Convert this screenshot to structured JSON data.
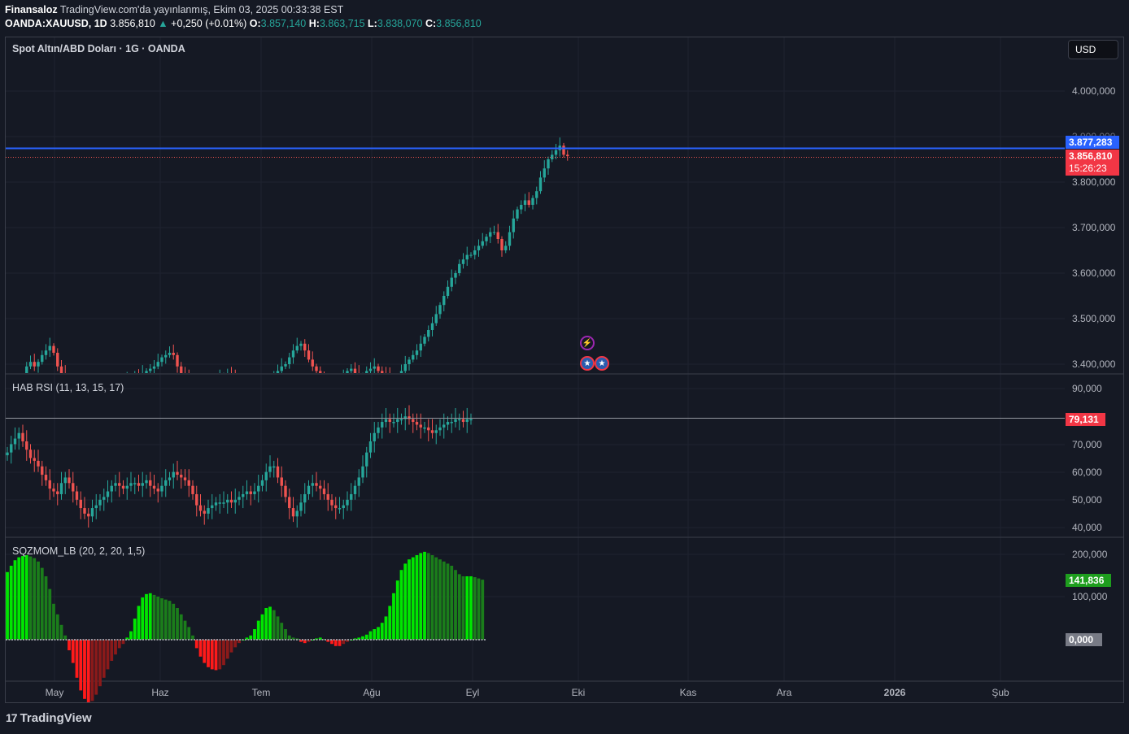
{
  "header": {
    "line1_author": "Finansaloz",
    "line1_rest": "TradingView.com'da yayınlanmış, Ekim 03, 2025 00:33:38 EST",
    "symbol": "OANDA:XAUUSD, 1D",
    "last": "3.856,810",
    "arrow": "▲",
    "change": "+0,250 (+0.01%)",
    "o_label": "O:",
    "o_val": "3.857,140",
    "h_label": "H:",
    "h_val": "3.863,715",
    "l_label": "L:",
    "l_val": "3.838,070",
    "c_label": "C:",
    "c_val": "3.856,810"
  },
  "main": {
    "title": "Spot Altın/ABD Doları · 1G · OANDA",
    "currency": "USD",
    "axis_labels": [
      "4.000,000",
      "3.900,000",
      "3.800,000",
      "3.700,000",
      "3.600,000",
      "3.500,000",
      "3.400,000"
    ],
    "alert_tag": "3.877,283",
    "price_tag": "3.856,810",
    "countdown": "15:26:23"
  },
  "rsi": {
    "title": "HAB RSI (11, 13, 15, 17)",
    "axis_labels": [
      "90,000",
      "70,000",
      "60,000",
      "50,000",
      "40,000"
    ],
    "tag": "79,131"
  },
  "sqz": {
    "title": "SQZMOM_LB (20, 2, 20, 1,5)",
    "axis_labels": [
      "200,000",
      "100,000"
    ],
    "tag": "141,836",
    "zero_tag": "0,000"
  },
  "time_axis": [
    "May",
    "Haz",
    "Tem",
    "Ağu",
    "Eyl",
    "Eki",
    "Kas",
    "Ara",
    "2026",
    "Şub"
  ],
  "events": {
    "bolt_icon": "⚡",
    "flag_icon": "us-flag-icon"
  },
  "footer": {
    "logo_mark": "17",
    "logo_text": "TradingView"
  },
  "colors": {
    "up": "#26a69a",
    "down": "#ef5350",
    "alert_line": "#2962ff",
    "price_tag": "#f23645",
    "sqz_bright_green": "#00e600",
    "sqz_dark_green": "#1b7d1b",
    "sqz_bright_red": "#ff1a1a",
    "sqz_dark_red": "#8b1a1a",
    "background": "#151924"
  },
  "chart_data": [
    {
      "type": "candlestick",
      "title": "Spot Altın/ABD Doları · 1G · OANDA",
      "y_axis": [
        3400,
        4000
      ],
      "series": [
        {
          "values": [
            3325,
            3335,
            3330,
            3345,
            3370,
            3395,
            3405,
            3395,
            3405,
            3420,
            3430,
            3440,
            3425,
            3395,
            3380,
            3370,
            3355,
            3345,
            3330,
            3320,
            3325,
            3335,
            3340,
            3335,
            3345,
            3350,
            3355,
            3360,
            3350,
            3345,
            3355,
            3365,
            3370,
            3375,
            3365,
            3380,
            3385,
            3390,
            3395,
            3405,
            3415,
            3420,
            3425,
            3420,
            3395,
            3380,
            3370,
            3360,
            3345,
            3335,
            3330,
            3340,
            3345,
            3350,
            3360,
            3370,
            3375,
            3380,
            3370,
            3365,
            3360,
            3350,
            3345,
            3340,
            3338,
            3345,
            3355,
            3360,
            3365,
            3375,
            3385,
            3395,
            3400,
            3415,
            3430,
            3440,
            3445,
            3430,
            3410,
            3395,
            3385,
            3370,
            3360,
            3355,
            3348,
            3350,
            3356,
            3370,
            3385,
            3390,
            3380,
            3370,
            3375,
            3385,
            3390,
            3395,
            3385,
            3380,
            3375,
            3370,
            3365,
            3370,
            3385,
            3400,
            3410,
            3420,
            3430,
            3445,
            3460,
            3475,
            3490,
            3510,
            3530,
            3550,
            3570,
            3590,
            3600,
            3620,
            3630,
            3640,
            3640,
            3650,
            3660,
            3670,
            3680,
            3690,
            3690,
            3675,
            3650,
            3660,
            3690,
            3720,
            3740,
            3750,
            3760,
            3750,
            3765,
            3780,
            3810,
            3830,
            3850,
            3860,
            3870,
            3880,
            3860,
            3857
          ]
        }
      ]
    },
    {
      "type": "candlestick",
      "title": "HAB RSI (11, 13, 15, 17)",
      "y_axis": [
        40,
        90
      ],
      "series": [
        {
          "values": [
            67,
            70,
            72,
            74,
            71,
            68,
            65,
            64,
            62,
            59,
            57,
            54,
            53,
            52,
            56,
            58,
            56,
            53,
            50,
            47,
            45,
            44,
            47,
            48,
            50,
            51,
            53,
            55,
            56,
            55,
            54,
            55,
            56,
            56,
            55,
            56,
            57,
            55,
            54,
            53,
            55,
            57,
            58,
            60,
            59,
            58,
            57,
            55,
            52,
            48,
            46,
            45,
            47,
            48,
            49,
            49,
            49,
            50,
            49,
            50,
            51,
            52,
            53,
            52,
            53,
            55,
            57,
            60,
            62,
            62,
            58,
            55,
            51,
            47,
            44,
            46,
            49,
            52,
            55,
            56,
            55,
            54,
            52,
            50,
            48,
            47,
            47,
            48,
            50,
            52,
            55,
            58,
            62,
            67,
            71,
            74,
            76,
            78,
            79,
            78,
            78,
            79,
            79,
            80,
            79,
            78,
            77,
            76,
            76,
            75,
            74,
            75,
            76,
            77,
            78,
            78,
            79,
            79,
            78,
            79,
            79
          ]
        }
      ]
    },
    {
      "type": "bar",
      "title": "SQZMOM_LB (20, 2, 20, 1,5)",
      "y_axis": [
        -150,
        230
      ],
      "series": [
        {
          "values": [
            160,
            175,
            188,
            195,
            198,
            200,
            197,
            193,
            185,
            170,
            150,
            120,
            85,
            60,
            35,
            10,
            -25,
            -55,
            -90,
            -120,
            -140,
            -148,
            -145,
            -130,
            -110,
            -90,
            -70,
            -50,
            -35,
            -20,
            -10,
            5,
            20,
            50,
            80,
            100,
            108,
            110,
            106,
            102,
            98,
            95,
            92,
            85,
            75,
            60,
            45,
            30,
            10,
            -20,
            -40,
            -55,
            -65,
            -70,
            -72,
            -70,
            -60,
            -45,
            -30,
            -18,
            -8,
            0,
            5,
            10,
            25,
            45,
            60,
            75,
            78,
            70,
            55,
            40,
            25,
            10,
            5,
            3,
            -5,
            -8,
            -5,
            0,
            3,
            5,
            2,
            -5,
            -10,
            -15,
            -15,
            -10,
            -5,
            0,
            3,
            5,
            8,
            12,
            20,
            25,
            30,
            40,
            55,
            80,
            110,
            140,
            165,
            180,
            190,
            195,
            200,
            205,
            208,
            205,
            200,
            195,
            190,
            185,
            180,
            175,
            165,
            155,
            150,
            150,
            150,
            148,
            145,
            142
          ]
        }
      ]
    }
  ]
}
